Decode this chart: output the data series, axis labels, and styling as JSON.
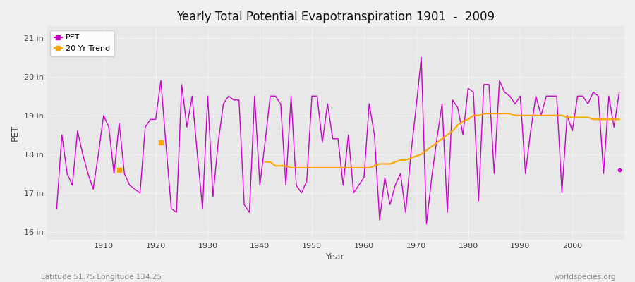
{
  "title": "Yearly Total Potential Evapotranspiration 1901  -  2009",
  "ylabel": "PET",
  "xlabel": "Year",
  "subtitle_left": "Latitude 51.75 Longitude 134.25",
  "subtitle_right": "worldspecies.org",
  "ylim": [
    15.8,
    21.3
  ],
  "yticks": [
    16,
    17,
    18,
    19,
    20,
    21
  ],
  "ytick_labels": [
    "16 in",
    "17 in",
    "18 in",
    "19 in",
    "20 in",
    "21 in"
  ],
  "pet_color": "#CC00CC",
  "trend_color": "#FFA500",
  "bg_color": "#F0F0F0",
  "plot_bg_color": "#E8E8E8",
  "grid_color": "#FFFFFF",
  "years": [
    1901,
    1902,
    1903,
    1904,
    1905,
    1906,
    1907,
    1908,
    1909,
    1910,
    1911,
    1912,
    1913,
    1914,
    1915,
    1916,
    1917,
    1918,
    1919,
    1920,
    1921,
    1922,
    1923,
    1924,
    1925,
    1926,
    1927,
    1928,
    1929,
    1930,
    1931,
    1932,
    1933,
    1934,
    1935,
    1936,
    1937,
    1938,
    1939,
    1940,
    1941,
    1942,
    1943,
    1944,
    1945,
    1946,
    1947,
    1948,
    1949,
    1950,
    1951,
    1952,
    1953,
    1954,
    1955,
    1956,
    1957,
    1958,
    1959,
    1960,
    1961,
    1962,
    1963,
    1964,
    1965,
    1966,
    1967,
    1968,
    1969,
    1970,
    1971,
    1972,
    1973,
    1974,
    1975,
    1976,
    1977,
    1978,
    1979,
    1980,
    1981,
    1982,
    1983,
    1984,
    1985,
    1986,
    1987,
    1988,
    1989,
    1990,
    1991,
    1992,
    1993,
    1994,
    1995,
    1996,
    1997,
    1998,
    1999,
    2000,
    2001,
    2002,
    2003,
    2004,
    2005,
    2006,
    2007,
    2008,
    2009
  ],
  "pet_values": [
    16.6,
    18.5,
    17.5,
    17.2,
    18.6,
    18.0,
    17.5,
    17.1,
    18.0,
    19.0,
    18.7,
    17.5,
    18.8,
    17.5,
    17.2,
    17.1,
    17.0,
    18.7,
    18.9,
    18.9,
    19.9,
    18.2,
    16.6,
    16.5,
    19.8,
    18.7,
    19.5,
    18.0,
    16.6,
    19.5,
    16.9,
    18.3,
    19.3,
    19.5,
    19.4,
    19.4,
    16.7,
    16.5,
    19.5,
    17.2,
    18.3,
    19.5,
    19.5,
    19.3,
    17.2,
    19.5,
    17.2,
    17.0,
    17.3,
    19.5,
    19.5,
    18.3,
    19.3,
    18.4,
    18.4,
    17.2,
    18.5,
    17.0,
    17.2,
    17.4,
    19.3,
    18.5,
    16.3,
    17.4,
    16.7,
    17.2,
    17.5,
    16.5,
    18.0,
    19.2,
    20.5,
    16.2,
    17.4,
    18.4,
    19.3,
    16.5,
    19.4,
    19.2,
    18.5,
    19.7,
    19.6,
    16.8,
    19.8,
    19.8,
    17.5,
    19.9,
    19.6,
    19.5,
    19.3,
    19.5,
    17.5,
    18.6,
    19.5,
    19.0,
    19.5,
    19.5,
    19.5,
    17.0,
    19.0,
    18.6,
    19.5,
    19.5,
    19.3,
    19.6,
    19.5,
    17.5,
    19.5,
    18.7,
    19.6
  ],
  "trend_values_years": [
    1941,
    1942,
    1943,
    1944,
    1945,
    1946,
    1947,
    1948,
    1949,
    1950,
    1951,
    1952,
    1953,
    1954,
    1955,
    1956,
    1957,
    1958,
    1959,
    1960,
    1961,
    1962,
    1963,
    1964,
    1965,
    1966,
    1967,
    1968,
    1969,
    1970,
    1971,
    1972,
    1973,
    1974,
    1975,
    1976,
    1977,
    1978,
    1979,
    1980,
    1981,
    1982,
    1983,
    1984,
    1985,
    1986,
    1987,
    1988,
    1989,
    1990,
    1991,
    1992,
    1993,
    1994,
    1995,
    1996,
    1997,
    1998,
    1999,
    2000,
    2001,
    2002,
    2003,
    2004,
    2005,
    2006,
    2007,
    2008,
    2009
  ],
  "trend_values": [
    17.8,
    17.8,
    17.7,
    17.7,
    17.7,
    17.65,
    17.65,
    17.65,
    17.65,
    17.65,
    17.65,
    17.65,
    17.65,
    17.65,
    17.65,
    17.65,
    17.65,
    17.65,
    17.65,
    17.65,
    17.65,
    17.7,
    17.75,
    17.75,
    17.75,
    17.8,
    17.85,
    17.85,
    17.9,
    17.95,
    18.0,
    18.1,
    18.2,
    18.3,
    18.4,
    18.5,
    18.6,
    18.75,
    18.85,
    18.9,
    19.0,
    19.0,
    19.05,
    19.05,
    19.05,
    19.05,
    19.05,
    19.05,
    19.0,
    19.0,
    19.0,
    19.0,
    19.0,
    19.0,
    19.0,
    19.0,
    19.0,
    19.0,
    18.95,
    18.95,
    18.95,
    18.95,
    18.95,
    18.9,
    18.9,
    18.9,
    18.9,
    18.9,
    18.9
  ],
  "early_trend_dots": [
    {
      "year": 1913,
      "value": 17.6
    },
    {
      "year": 1921,
      "value": 18.3
    }
  ],
  "isolated_dot_year": 2009,
  "isolated_dot_value": 17.6,
  "xticks": [
    1910,
    1920,
    1930,
    1940,
    1950,
    1960,
    1970,
    1980,
    1990,
    2000
  ]
}
